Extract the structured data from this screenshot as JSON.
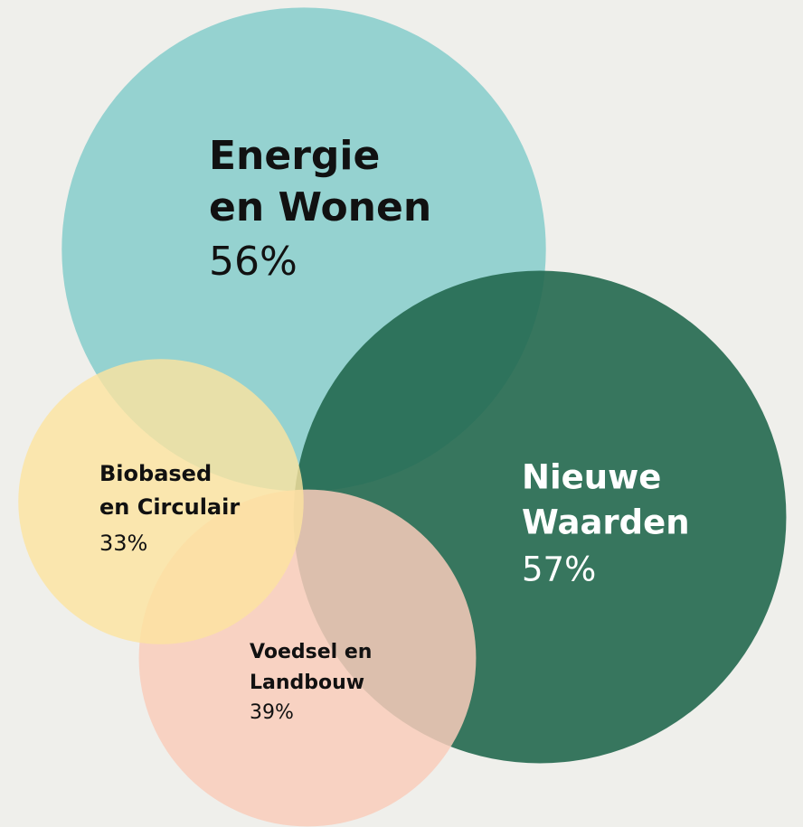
{
  "chart_data": {
    "type": "bubble",
    "categories": [
      [
        "Energie",
        "en Wonen"
      ],
      [
        "Nieuwe",
        "Waarden"
      ],
      [
        "Voedsel en",
        "Landbouw"
      ],
      [
        "Biobased",
        "en Circulair"
      ]
    ],
    "values": [
      56,
      57,
      39,
      33
    ],
    "value_labels": [
      "56%",
      "57%",
      "39%",
      "33%"
    ],
    "colors": [
      "#8fd0cf",
      "#22684f",
      "#f9cdbb",
      "#fde39f"
    ]
  }
}
